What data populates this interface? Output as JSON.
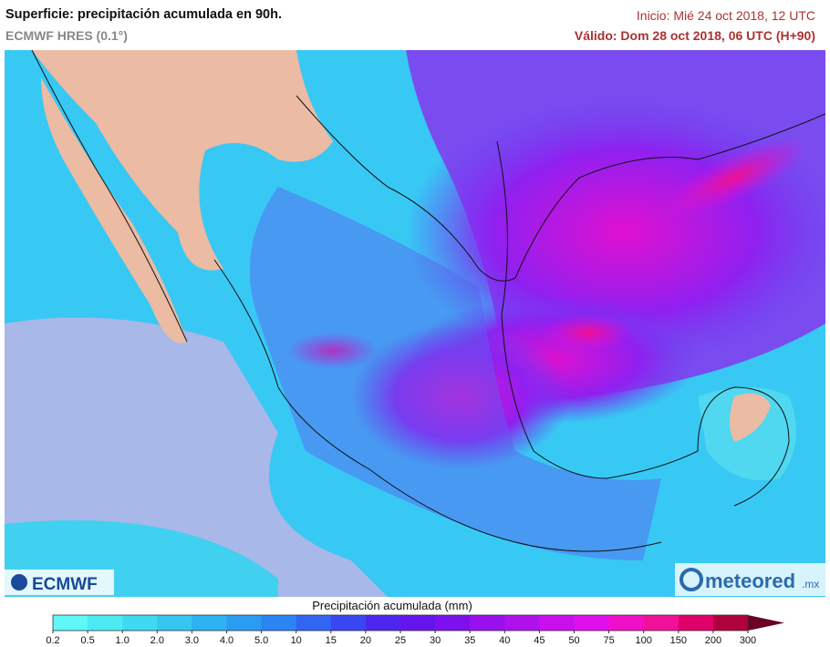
{
  "header": {
    "title": "Superficie: precipitación acumulada en 90h.",
    "model": "ECMWF HRES (0.1°)",
    "init": "Inicio: Mié 24 oct 2018, 12 UTC",
    "valid": "Válido: Dom 28 oct 2018, 06 UTC (H+90)"
  },
  "logos": {
    "left": "ECMWF",
    "right": "meteored",
    "right_suffix": ".mx"
  },
  "colorbar": {
    "title": "Precipitación acumulada (mm)",
    "labels": [
      "0.2",
      "0.5",
      "1.0",
      "2.0",
      "3.0",
      "4.0",
      "5.0",
      "10",
      "15",
      "20",
      "25",
      "30",
      "35",
      "40",
      "45",
      "50",
      "75",
      "100",
      "150",
      "200",
      "300"
    ],
    "colors": [
      "#5ff7f7",
      "#4ceaf2",
      "#3edaf2",
      "#36c6f2",
      "#2eb2f2",
      "#2a9cf2",
      "#2a84f2",
      "#3066f2",
      "#3a46f2",
      "#4c26ee",
      "#6614ee",
      "#7e10ee",
      "#9810ee",
      "#b010ee",
      "#c810ee",
      "#e010ea",
      "#f010c8",
      "#f0109a",
      "#e0006a",
      "#b0003e",
      "#6a0022"
    ]
  }
}
